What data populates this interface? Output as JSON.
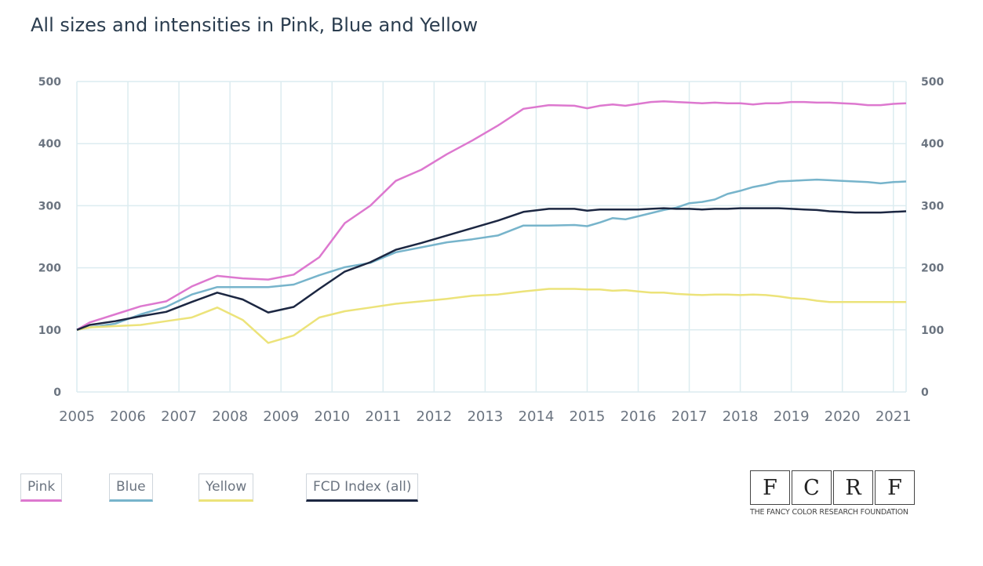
{
  "title": "All sizes and intensities in Pink, Blue and Yellow",
  "colors": {
    "pink": "#dd78cf",
    "blue": "#77b4cb",
    "yellow": "#ece37a",
    "fcd": "#1c2742",
    "grid": "#dcecf0"
  },
  "legend": [
    {
      "label": "Pink",
      "color": "#dd78cf"
    },
    {
      "label": "Blue",
      "color": "#77b4cb"
    },
    {
      "label": "Yellow",
      "color": "#ece37a"
    },
    {
      "label": "FCD Index (all)",
      "color": "#1c2742"
    }
  ],
  "logo": {
    "letters": [
      "F",
      "C",
      "R",
      "F"
    ],
    "subtitle": "THE FANCY COLOR RESEARCH FOUNDATION"
  },
  "chart_data": {
    "type": "line",
    "title": "All sizes and intensities in Pink, Blue and Yellow",
    "xlabel": "",
    "ylabel": "",
    "xlim": [
      2005,
      2021.25
    ],
    "ylim": [
      0,
      500
    ],
    "x_ticks": [
      "2005",
      "2006",
      "2007",
      "2008",
      "2009",
      "2010",
      "2011",
      "2012",
      "2013",
      "2014",
      "2015",
      "2016",
      "2017",
      "2018",
      "2019",
      "2020",
      "2021"
    ],
    "y_ticks": [
      0,
      100,
      200,
      300,
      400,
      500
    ],
    "x": [
      2005.0,
      2005.25,
      2005.75,
      2006.25,
      2006.75,
      2007.25,
      2007.75,
      2008.25,
      2008.75,
      2009.25,
      2009.75,
      2010.25,
      2010.75,
      2011.25,
      2011.75,
      2012.25,
      2012.75,
      2013.25,
      2013.75,
      2014.25,
      2014.75,
      2015.0,
      2015.25,
      2015.5,
      2015.75,
      2016.0,
      2016.25,
      2016.5,
      2016.75,
      2017.0,
      2017.25,
      2017.5,
      2017.75,
      2018.0,
      2018.25,
      2018.5,
      2018.75,
      2019.0,
      2019.25,
      2019.5,
      2019.75,
      2020.0,
      2020.25,
      2020.5,
      2020.75,
      2021.0,
      2021.25
    ],
    "series": [
      {
        "name": "Pink",
        "color": "#dd78cf",
        "values": [
          100,
          112,
          125,
          138,
          146,
          170,
          187,
          183,
          181,
          189,
          217,
          272,
          300,
          340,
          358,
          383,
          405,
          429,
          456,
          462,
          461,
          457,
          461,
          463,
          461,
          464,
          467,
          468,
          467,
          466,
          465,
          466,
          465,
          465,
          463,
          465,
          465,
          467,
          467,
          466,
          466,
          465,
          464,
          462,
          462,
          464,
          465
        ]
      },
      {
        "name": "Blue",
        "color": "#77b4cb",
        "values": [
          100,
          104,
          110,
          125,
          137,
          157,
          169,
          169,
          169,
          173,
          188,
          201,
          208,
          225,
          233,
          241,
          246,
          252,
          268,
          268,
          269,
          267,
          273,
          280,
          278,
          283,
          288,
          293,
          297,
          304,
          306,
          310,
          319,
          324,
          330,
          334,
          339,
          340,
          341,
          342,
          341,
          340,
          339,
          338,
          336,
          338,
          339
        ]
      },
      {
        "name": "Yellow",
        "color": "#ece37a",
        "values": [
          100,
          104,
          106,
          108,
          114,
          120,
          136,
          116,
          79,
          91,
          120,
          130,
          136,
          142,
          146,
          150,
          155,
          157,
          162,
          166,
          166,
          165,
          165,
          163,
          164,
          162,
          160,
          160,
          158,
          157,
          156,
          157,
          157,
          156,
          157,
          156,
          154,
          151,
          150,
          147,
          145,
          145,
          145,
          145,
          145,
          145,
          145
        ]
      },
      {
        "name": "FCD Index (all)",
        "color": "#1c2742",
        "values": [
          100,
          108,
          114,
          122,
          129,
          145,
          160,
          149,
          128,
          137,
          166,
          194,
          209,
          229,
          240,
          252,
          264,
          276,
          290,
          295,
          295,
          292,
          294,
          294,
          294,
          294,
          295,
          296,
          295,
          295,
          294,
          295,
          295,
          296,
          296,
          296,
          296,
          295,
          294,
          293,
          291,
          290,
          289,
          289,
          289,
          290,
          291
        ]
      }
    ]
  }
}
